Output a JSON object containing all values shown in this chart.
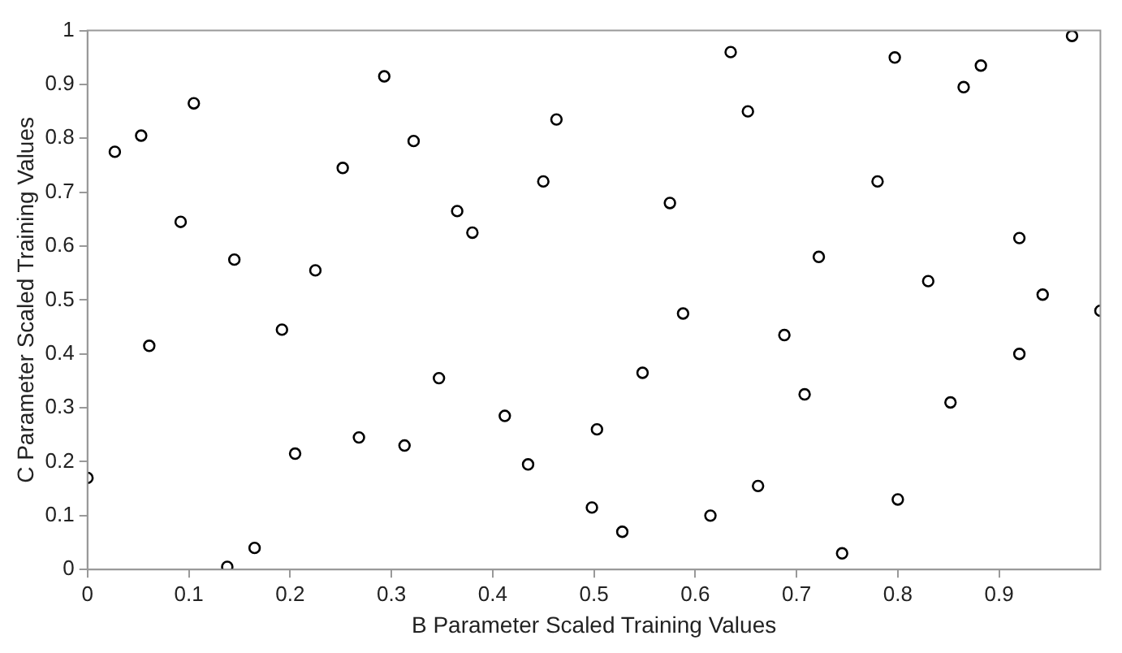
{
  "chart_data": {
    "type": "scatter",
    "xlabel": "B Parameter Scaled Training Values",
    "ylabel": "C Parameter Scaled Training Values",
    "marker": "circle",
    "grid": false,
    "legend": false,
    "xlim": [
      0,
      1
    ],
    "xticks": [
      0,
      0.1,
      0.2,
      0.3,
      0.4,
      0.5,
      0.6,
      0.7,
      0.8,
      0.9
    ],
    "ylim": [
      0,
      1
    ],
    "yticks": [
      0,
      0.1,
      0.2,
      0.3,
      0.4,
      0.5,
      0.6,
      0.7,
      0.8,
      0.9,
      1
    ],
    "series": [
      {
        "color": "#000000",
        "x": [
          0,
          0.027,
          0.053,
          0.061,
          0.092,
          0.105,
          0.145,
          0.138,
          0.165,
          0.192,
          0.205,
          0.225,
          0.252,
          0.268,
          0.293,
          0.313,
          0.322,
          0.347,
          0.365,
          0.38,
          0.412,
          0.435,
          0.45,
          0.463,
          0.498,
          0.503,
          0.528,
          0.548,
          0.575,
          0.588,
          0.615,
          0.635,
          0.652,
          0.662,
          0.688,
          0.708,
          0.722,
          0.745,
          0.78,
          0.797,
          0.8,
          0.83,
          0.852,
          0.865,
          0.882,
          0.92,
          0.92,
          0.943,
          0.972,
          1.0
        ],
        "values": [
          0.17,
          0.775,
          0.805,
          0.415,
          0.645,
          0.865,
          0.575,
          0.005,
          0.04,
          0.445,
          0.215,
          0.555,
          0.745,
          0.245,
          0.915,
          0.23,
          0.795,
          0.355,
          0.665,
          0.625,
          0.285,
          0.195,
          0.72,
          0.835,
          0.115,
          0.26,
          0.07,
          0.365,
          0.68,
          0.475,
          0.1,
          0.96,
          0.85,
          0.155,
          0.435,
          0.325,
          0.58,
          0.03,
          0.72,
          0.95,
          0.13,
          0.535,
          0.31,
          0.895,
          0.935,
          0.615,
          0.4,
          0.51,
          0.99,
          0.48
        ]
      }
    ]
  }
}
